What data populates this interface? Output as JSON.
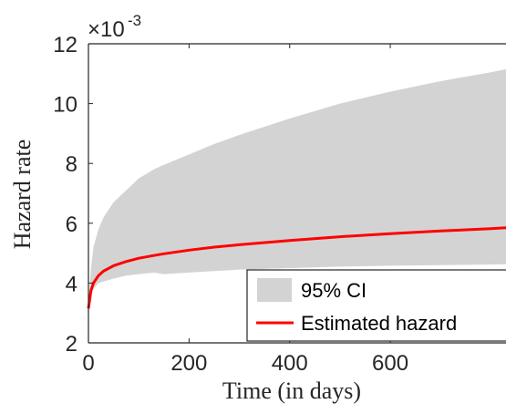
{
  "chart_data": {
    "type": "area",
    "xlabel": "Time (in days)",
    "ylabel": "Hazard rate",
    "exponent_base": "×10",
    "exponent_power": "-3",
    "xlim": [
      0,
      830
    ],
    "ylim": [
      2,
      12
    ],
    "x_ticks": [
      0,
      200,
      400,
      600
    ],
    "x_tick_labels": [
      "0",
      "200",
      "400",
      "600"
    ],
    "y_ticks": [
      2,
      4,
      6,
      8,
      10,
      12
    ],
    "y_tick_labels": [
      "2",
      "4",
      "6",
      "8",
      "10",
      "12"
    ],
    "grid": false,
    "legend_position": "bottom-right",
    "x": [
      0,
      5,
      10,
      20,
      30,
      50,
      75,
      100,
      130,
      150,
      200,
      250,
      300,
      400,
      500,
      600,
      700,
      800,
      830
    ],
    "series": [
      {
        "name": "95% CI",
        "kind": "band",
        "color": "#d3d3d3",
        "lower": [
          3.2,
          3.6,
          3.8,
          4.0,
          4.05,
          4.15,
          4.25,
          4.3,
          4.35,
          4.3,
          4.35,
          4.4,
          4.45,
          4.5,
          4.55,
          4.58,
          4.6,
          4.62,
          4.63
        ],
        "upper": [
          3.2,
          4.5,
          5.2,
          5.8,
          6.2,
          6.7,
          7.1,
          7.5,
          7.8,
          7.95,
          8.3,
          8.65,
          8.95,
          9.5,
          10.0,
          10.4,
          10.75,
          11.05,
          11.15
        ]
      },
      {
        "name": "Estimated hazard",
        "kind": "line",
        "color": "#ff0000",
        "values": [
          3.15,
          3.75,
          4.0,
          4.25,
          4.4,
          4.58,
          4.72,
          4.83,
          4.92,
          4.98,
          5.1,
          5.2,
          5.28,
          5.42,
          5.55,
          5.65,
          5.74,
          5.82,
          5.85
        ]
      }
    ]
  }
}
